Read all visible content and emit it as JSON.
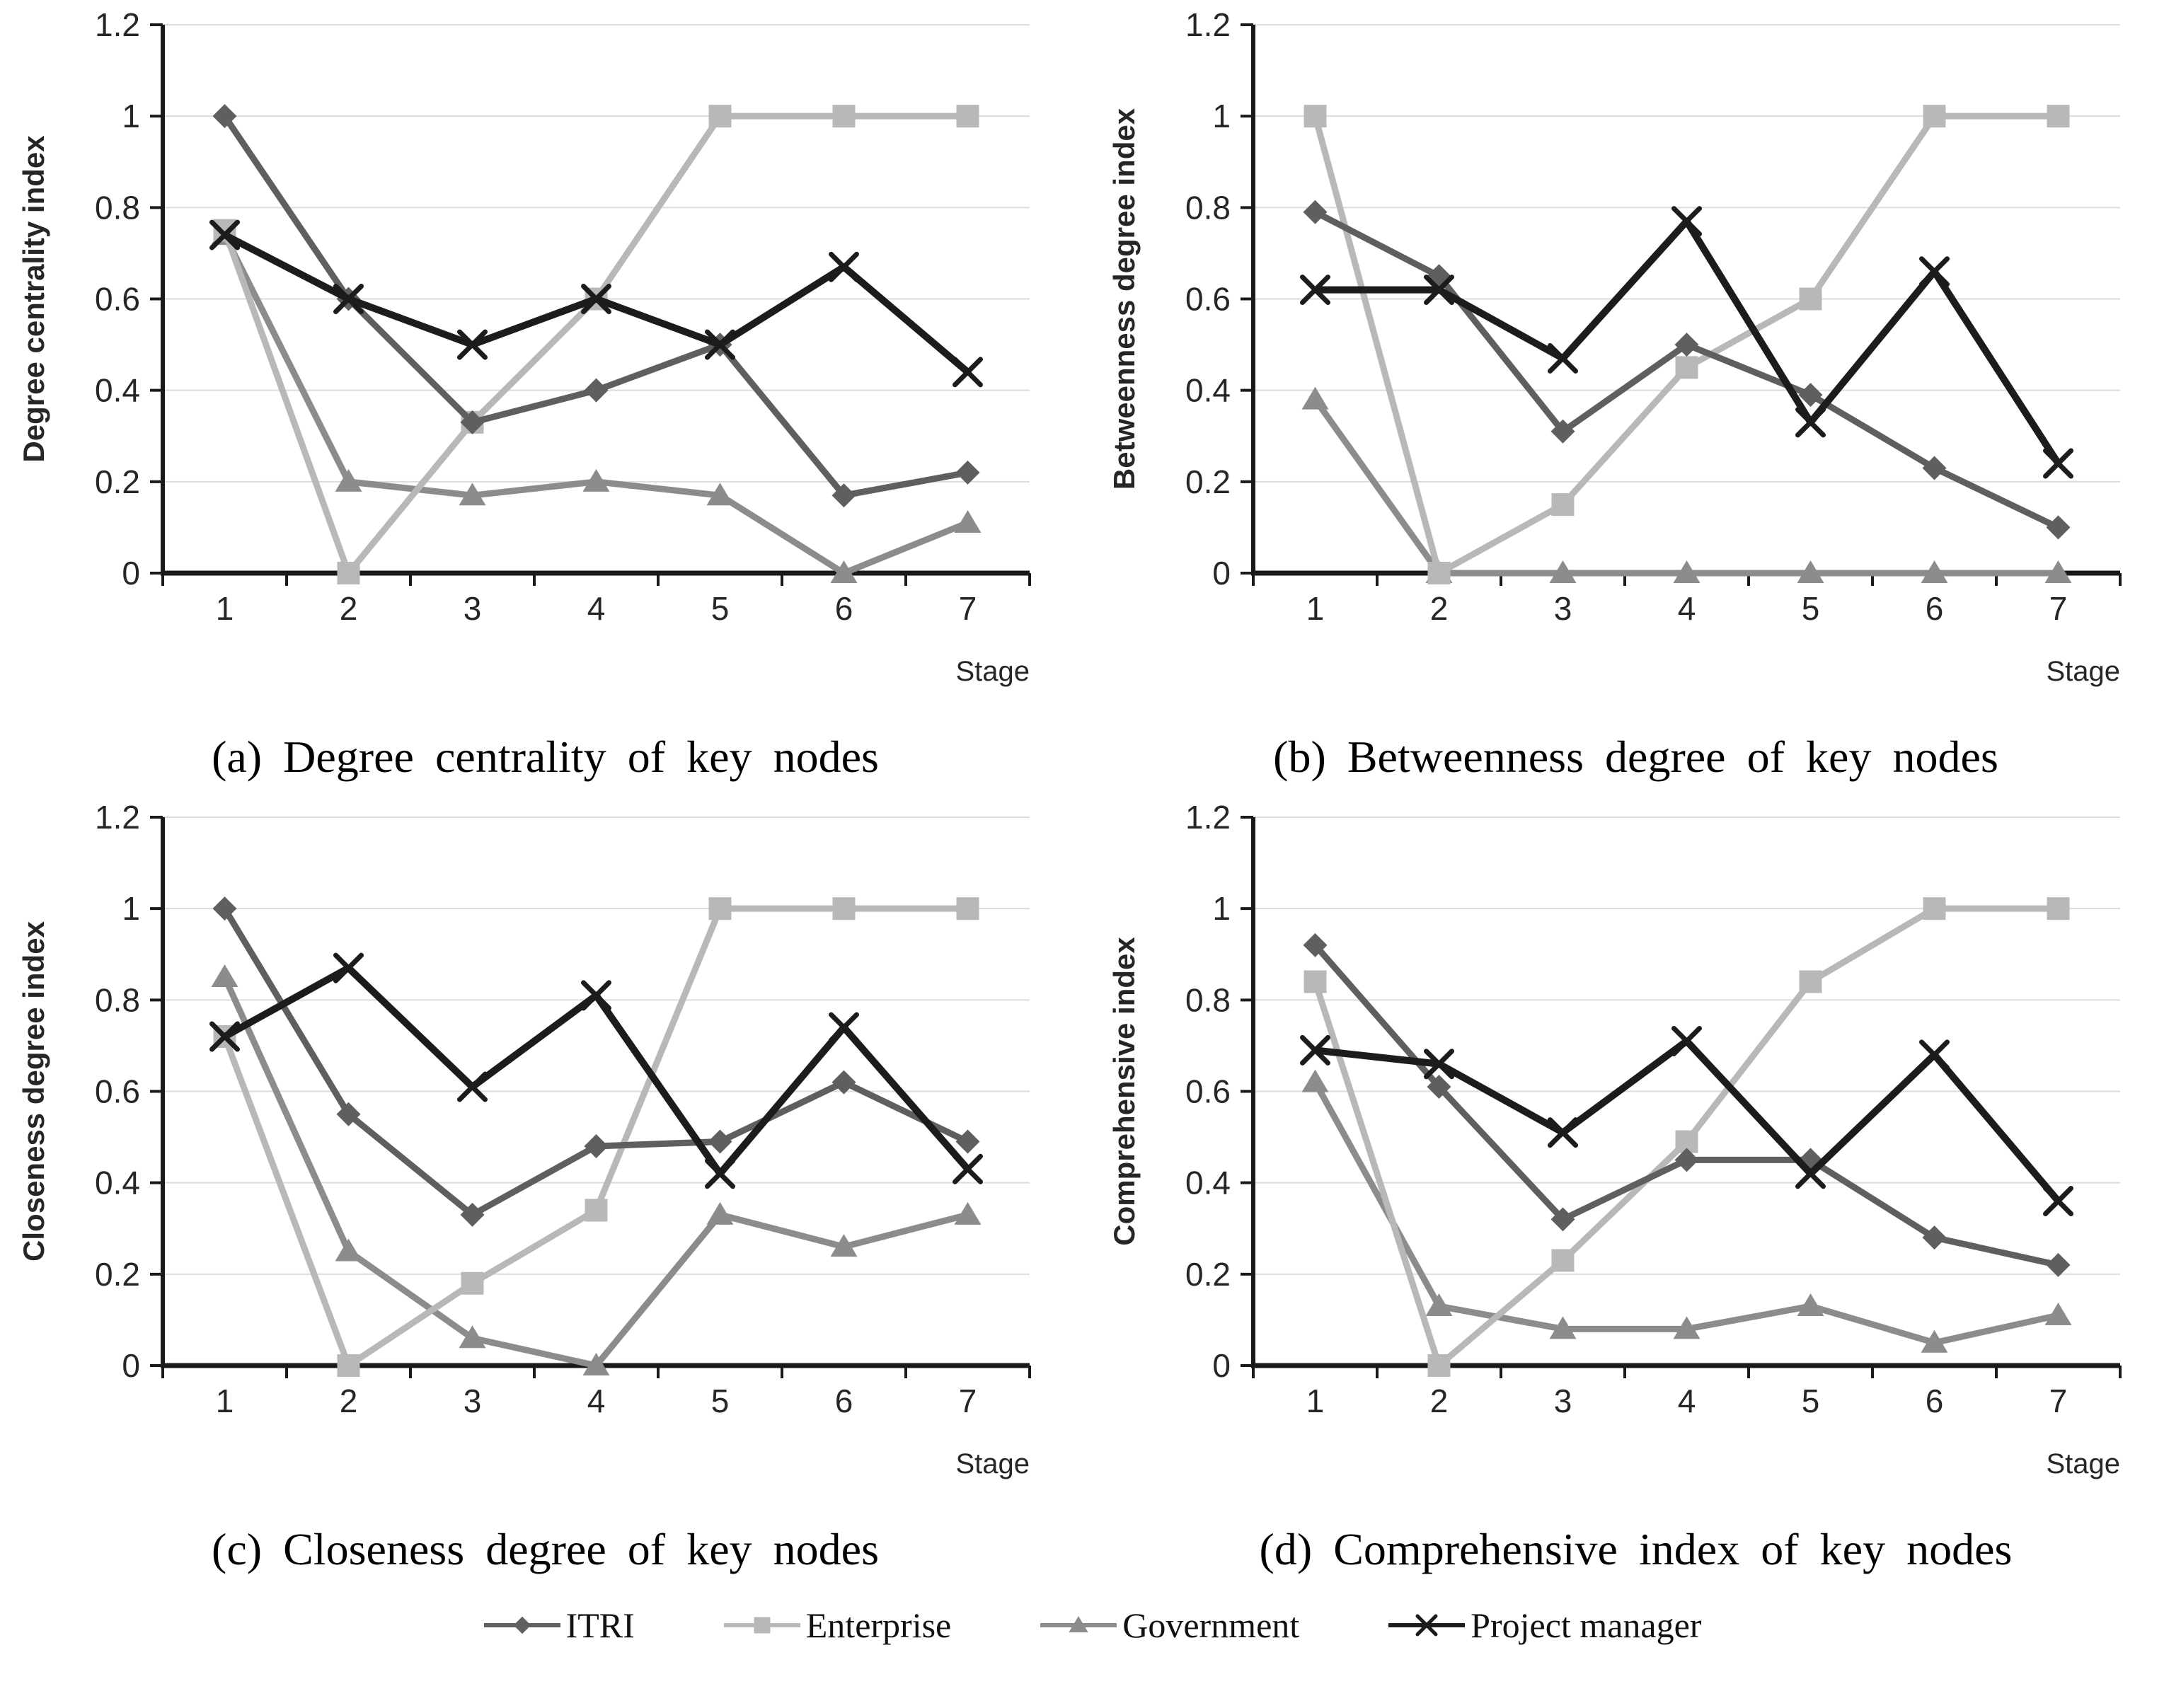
{
  "page": {
    "background": "#ffffff"
  },
  "colors": {
    "itri": "#5f5f5f",
    "enterprise": "#b8b8b8",
    "government": "#8c8c8c",
    "project_manager": "#1c1c1c",
    "gridline": "#dcdcdc",
    "axis": "#1a1a1a",
    "text": "#262626"
  },
  "axis": {
    "x_label": "Stage",
    "x_ticks": [
      "1",
      "2",
      "3",
      "4",
      "5",
      "6",
      "7"
    ],
    "y_ticks": [
      "0",
      "0.2",
      "0.4",
      "0.6",
      "0.8",
      "1",
      "1.2"
    ],
    "y_min": 0,
    "y_max": 1.2,
    "grid": "horizontal"
  },
  "legend": {
    "position": "bottom-center",
    "items": [
      {
        "label": "ITRI",
        "marker": "diamond",
        "color_key": "itri"
      },
      {
        "label": "Enterprise",
        "marker": "square",
        "color_key": "enterprise"
      },
      {
        "label": "Government",
        "marker": "triangle",
        "color_key": "government"
      },
      {
        "label": "Project manager",
        "marker": "x",
        "color_key": "project_manager"
      }
    ]
  },
  "chart_data": [
    {
      "type": "line",
      "panel": "a",
      "title": "(a) Degree centrality of key nodes",
      "xlabel": "Stage",
      "ylabel": "Degree centrality index",
      "x": [
        1,
        2,
        3,
        4,
        5,
        6,
        7
      ],
      "ylim": [
        0,
        1.2
      ],
      "series": [
        {
          "name": "ITRI",
          "marker": "diamond",
          "color_key": "itri",
          "values": [
            1.0,
            0.6,
            0.33,
            0.4,
            0.5,
            0.17,
            0.22
          ]
        },
        {
          "name": "Enterprise",
          "marker": "square",
          "color_key": "enterprise",
          "values": [
            0.75,
            0.0,
            0.33,
            0.6,
            1.0,
            1.0,
            1.0
          ]
        },
        {
          "name": "Government",
          "marker": "triangle",
          "color_key": "government",
          "values": [
            0.74,
            0.2,
            0.17,
            0.2,
            0.17,
            0.0,
            0.11
          ]
        },
        {
          "name": "Project manager",
          "marker": "x",
          "color_key": "project_manager",
          "values": [
            0.74,
            0.6,
            0.5,
            0.6,
            0.5,
            0.67,
            0.44
          ]
        }
      ]
    },
    {
      "type": "line",
      "panel": "b",
      "title": "(b) Betweenness degree of key nodes",
      "xlabel": "Stage",
      "ylabel": "Betweenness degree index",
      "x": [
        1,
        2,
        3,
        4,
        5,
        6,
        7
      ],
      "ylim": [
        0,
        1.2
      ],
      "series": [
        {
          "name": "ITRI",
          "marker": "diamond",
          "color_key": "itri",
          "values": [
            0.79,
            0.65,
            0.31,
            0.5,
            0.39,
            0.23,
            0.1
          ]
        },
        {
          "name": "Enterprise",
          "marker": "square",
          "color_key": "enterprise",
          "values": [
            1.0,
            0.0,
            0.15,
            0.45,
            0.6,
            1.0,
            1.0
          ]
        },
        {
          "name": "Government",
          "marker": "triangle",
          "color_key": "government",
          "values": [
            0.38,
            0.0,
            0.0,
            0.0,
            0.0,
            0.0,
            0.0
          ]
        },
        {
          "name": "Project manager",
          "marker": "x",
          "color_key": "project_manager",
          "values": [
            0.62,
            0.62,
            0.47,
            0.77,
            0.33,
            0.66,
            0.24
          ]
        }
      ]
    },
    {
      "type": "line",
      "panel": "c",
      "title": "(c) Closeness degree of key nodes",
      "xlabel": "Stage",
      "ylabel": "Closeness degree index",
      "x": [
        1,
        2,
        3,
        4,
        5,
        6,
        7
      ],
      "ylim": [
        0,
        1.2
      ],
      "series": [
        {
          "name": "ITRI",
          "marker": "diamond",
          "color_key": "itri",
          "values": [
            1.0,
            0.55,
            0.33,
            0.48,
            0.49,
            0.62,
            0.49
          ]
        },
        {
          "name": "Enterprise",
          "marker": "square",
          "color_key": "enterprise",
          "values": [
            0.72,
            0.0,
            0.18,
            0.34,
            1.0,
            1.0,
            1.0
          ]
        },
        {
          "name": "Government",
          "marker": "triangle",
          "color_key": "government",
          "values": [
            0.85,
            0.25,
            0.06,
            0.0,
            0.33,
            0.26,
            0.33
          ]
        },
        {
          "name": "Project manager",
          "marker": "x",
          "color_key": "project_manager",
          "values": [
            0.72,
            0.87,
            0.61,
            0.81,
            0.42,
            0.74,
            0.43
          ]
        }
      ]
    },
    {
      "type": "line",
      "panel": "d",
      "title": "(d) Comprehensive index of key nodes",
      "xlabel": "Stage",
      "ylabel": "Comprehensive index",
      "x": [
        1,
        2,
        3,
        4,
        5,
        6,
        7
      ],
      "ylim": [
        0,
        1.2
      ],
      "series": [
        {
          "name": "ITRI",
          "marker": "diamond",
          "color_key": "itri",
          "values": [
            0.92,
            0.61,
            0.32,
            0.45,
            0.45,
            0.28,
            0.22
          ]
        },
        {
          "name": "Enterprise",
          "marker": "square",
          "color_key": "enterprise",
          "values": [
            0.84,
            0.0,
            0.23,
            0.49,
            0.84,
            1.0,
            1.0
          ]
        },
        {
          "name": "Government",
          "marker": "triangle",
          "color_key": "government",
          "values": [
            0.62,
            0.13,
            0.08,
            0.08,
            0.13,
            0.05,
            0.11
          ]
        },
        {
          "name": "Project manager",
          "marker": "x",
          "color_key": "project_manager",
          "values": [
            0.69,
            0.66,
            0.51,
            0.71,
            0.42,
            0.68,
            0.36
          ]
        }
      ]
    }
  ]
}
